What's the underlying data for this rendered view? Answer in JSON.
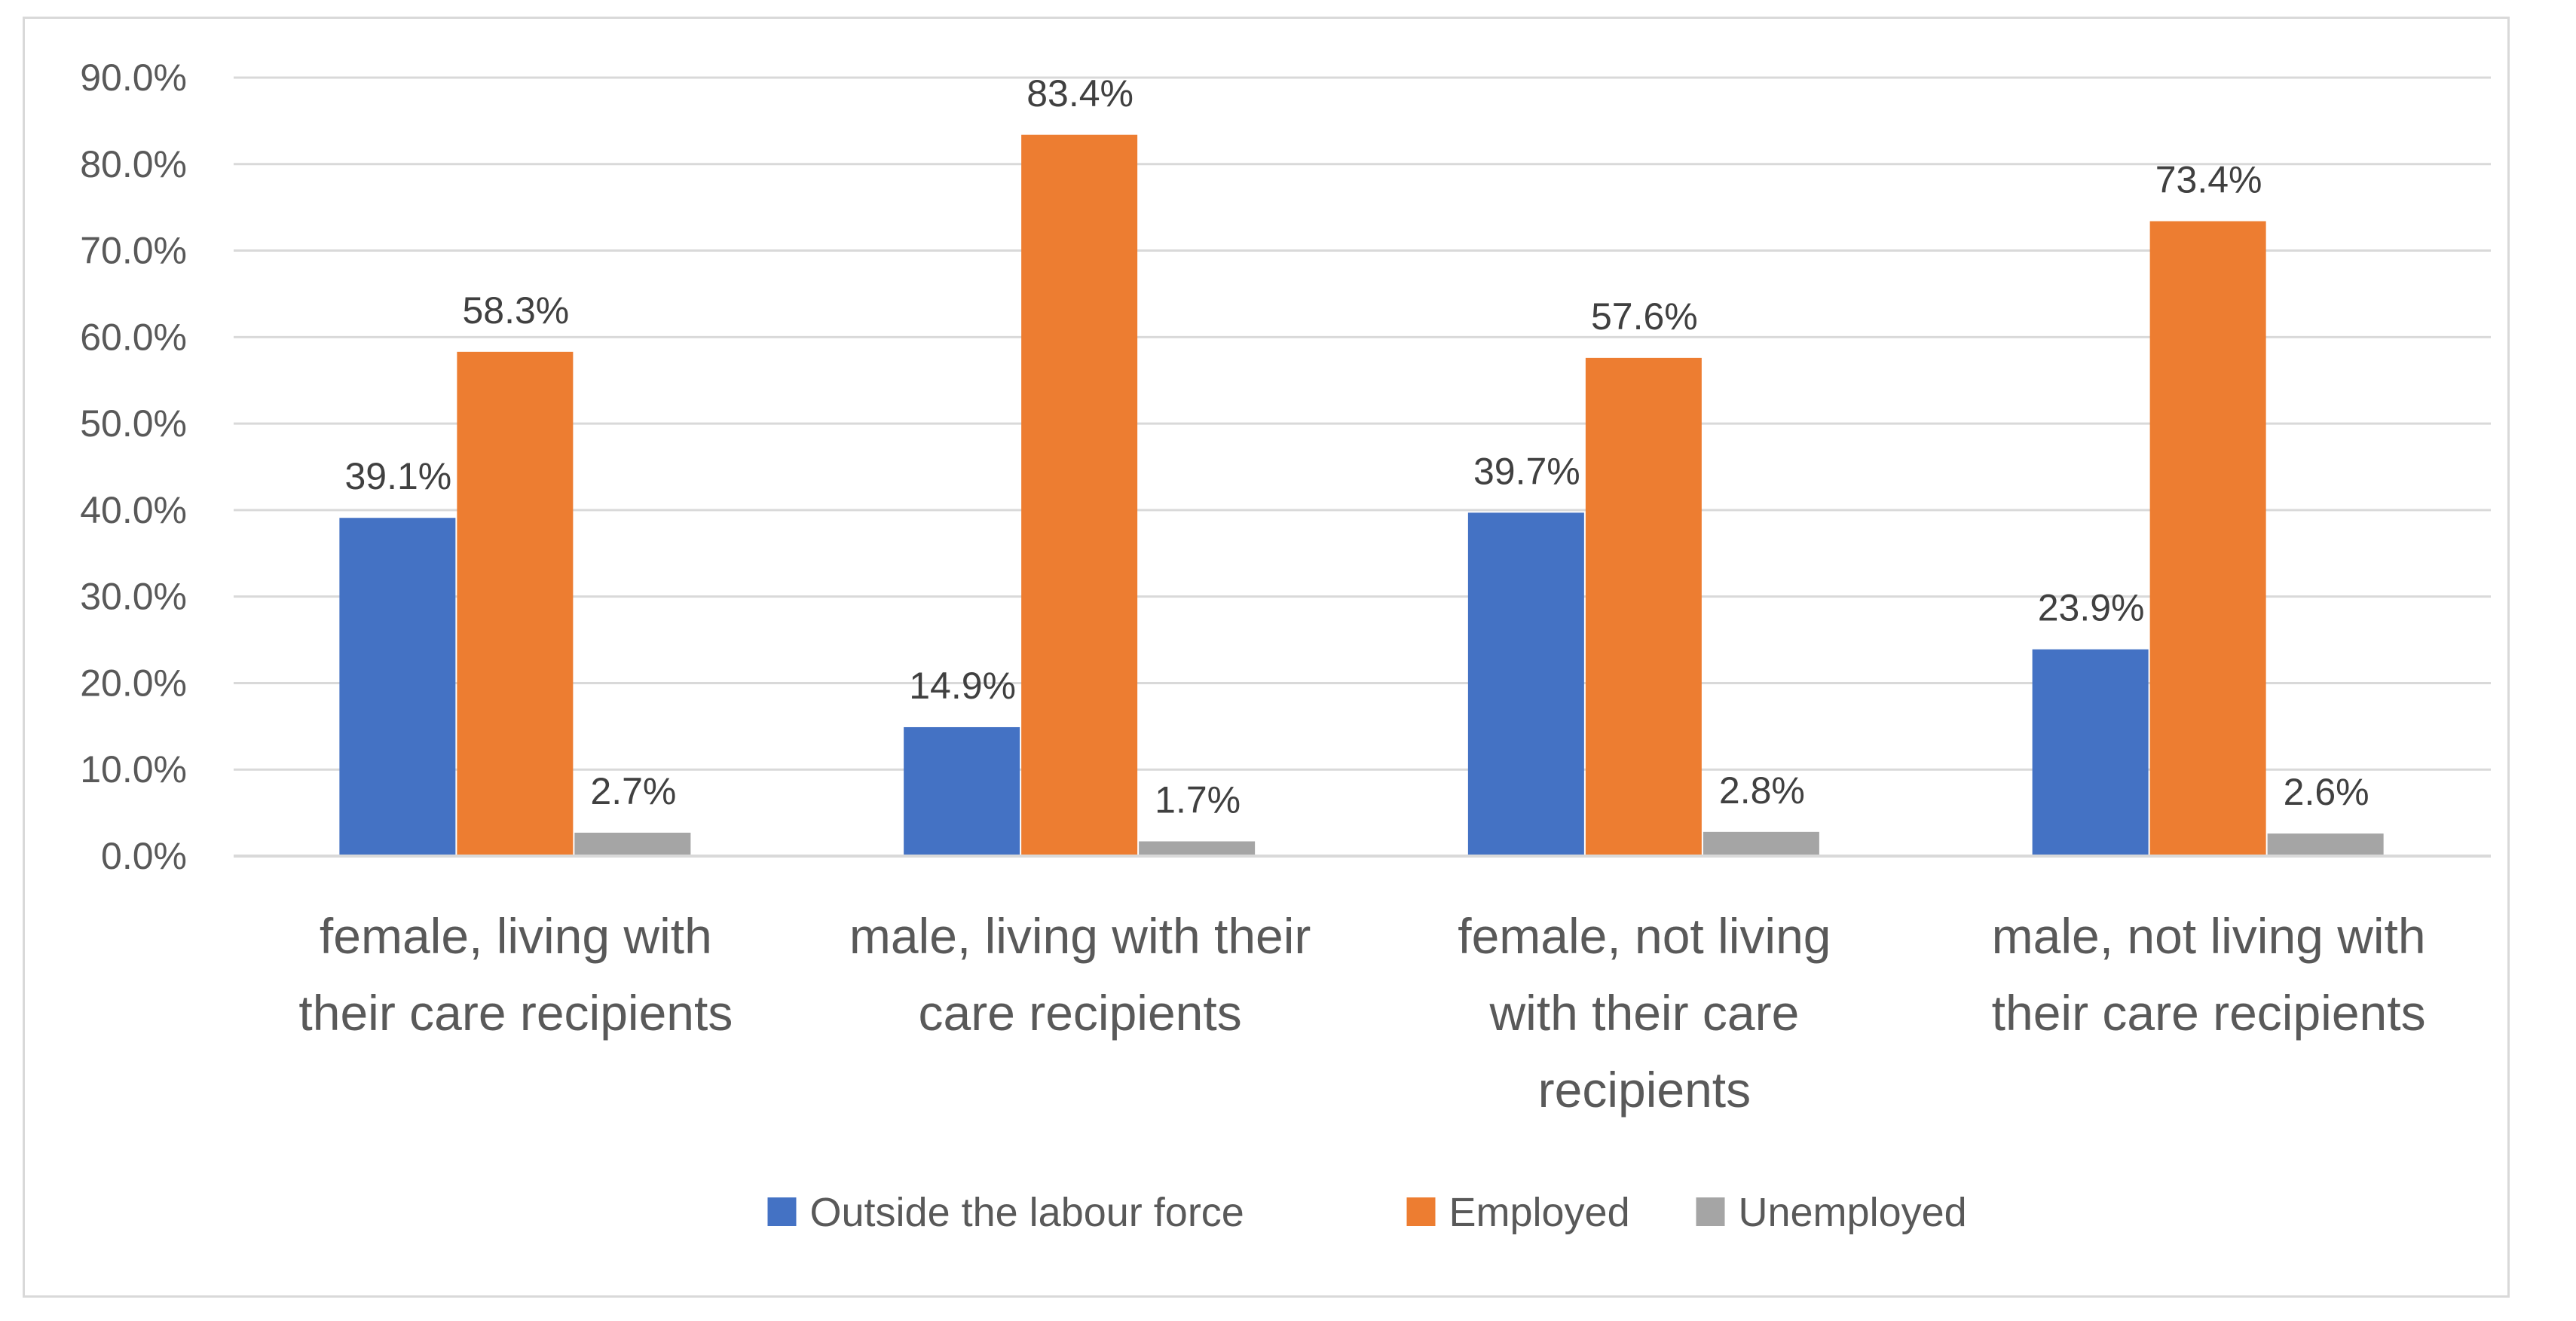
{
  "chart_data": {
    "type": "bar",
    "title": "",
    "xlabel": "",
    "ylabel": "",
    "ylim": [
      0,
      90
    ],
    "y_ticks": [
      "0.0%",
      "10.0%",
      "20.0%",
      "30.0%",
      "40.0%",
      "50.0%",
      "60.0%",
      "70.0%",
      "80.0%",
      "90.0%"
    ],
    "grid": true,
    "legend_position": "bottom",
    "categories": [
      [
        "female, living with",
        "their care recipients"
      ],
      [
        "male, living with their",
        "care recipients"
      ],
      [
        "female, not living",
        "with their care",
        "recipients"
      ],
      [
        "male, not living with",
        "their care recipients"
      ]
    ],
    "series": [
      {
        "name": "Outside the labour force",
        "color": "#4472C4",
        "values": [
          39.1,
          14.9,
          39.7,
          23.9
        ],
        "labels": [
          "39.1%",
          "14.9%",
          "39.7%",
          "23.9%"
        ]
      },
      {
        "name": "Employed",
        "color": "#ED7D31",
        "values": [
          58.3,
          83.4,
          57.6,
          73.4
        ],
        "labels": [
          "58.3%",
          "83.4%",
          "57.6%",
          "73.4%"
        ]
      },
      {
        "name": "Unemployed",
        "color": "#A5A5A5",
        "values": [
          2.7,
          1.7,
          2.8,
          2.6
        ],
        "labels": [
          "2.7%",
          "1.7%",
          "2.8%",
          "2.6%"
        ]
      }
    ]
  }
}
